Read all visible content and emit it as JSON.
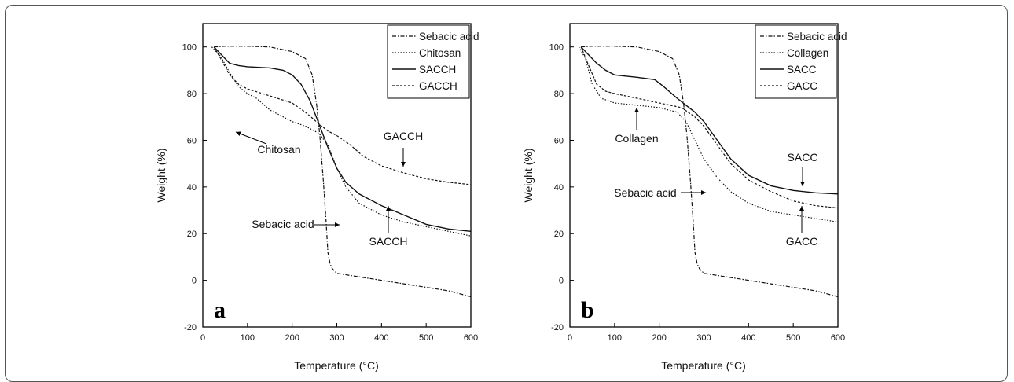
{
  "chart_data": [
    {
      "type": "line",
      "panel_label": "a",
      "xlabel": "Temperature (°C)",
      "ylabel": "Weight (%)",
      "xlim": [
        0,
        600
      ],
      "ylim": [
        -20,
        110
      ],
      "xticks": [
        0,
        100,
        200,
        300,
        400,
        500,
        600
      ],
      "yticks": [
        -20,
        0,
        20,
        40,
        60,
        80,
        100
      ],
      "legend_position": "top-right",
      "series": [
        {
          "name": "Sebacic acid",
          "style": "dashdot",
          "x": [
            25,
            50,
            100,
            150,
            200,
            230,
            245,
            255,
            262,
            270,
            276,
            280,
            285,
            290,
            300,
            350,
            400,
            450,
            500,
            550,
            600
          ],
          "y": [
            100,
            100.3,
            100.3,
            100,
            98,
            95,
            88,
            75,
            62,
            42,
            25,
            12,
            7,
            5,
            3,
            1.5,
            0,
            -1.5,
            -3,
            -4.5,
            -7
          ]
        },
        {
          "name": "Chitosan",
          "style": "dotted",
          "x": [
            20,
            40,
            60,
            80,
            100,
            120,
            150,
            200,
            230,
            260,
            280,
            300,
            320,
            350,
            400,
            450,
            500,
            550,
            600
          ],
          "y": [
            100,
            96,
            89,
            83,
            80,
            78,
            73,
            68,
            66,
            63,
            58,
            48,
            40,
            33,
            28,
            25,
            23,
            21,
            19
          ]
        },
        {
          "name": "SACCH",
          "style": "solid",
          "x": [
            25,
            40,
            60,
            80,
            100,
            150,
            180,
            200,
            220,
            240,
            260,
            280,
            300,
            320,
            350,
            400,
            450,
            500,
            550,
            600
          ],
          "y": [
            100,
            97,
            93,
            92,
            91.5,
            91,
            90,
            88,
            84,
            77,
            67,
            57,
            48,
            42,
            37,
            32,
            28,
            24,
            22,
            21
          ]
        },
        {
          "name": "GACCH",
          "style": "short-dash",
          "x": [
            25,
            40,
            60,
            80,
            100,
            150,
            200,
            230,
            260,
            280,
            300,
            330,
            360,
            400,
            450,
            500,
            550,
            600
          ],
          "y": [
            100,
            95,
            88,
            84,
            82,
            79,
            76,
            72,
            67,
            64,
            62,
            58,
            53,
            49,
            46,
            43.5,
            42,
            41
          ]
        }
      ],
      "annotations": [
        {
          "text": "Chitosan",
          "x": 200,
          "y": 67
        },
        {
          "text": "GACCH",
          "x": 415,
          "y": 48
        },
        {
          "text": "Sebacic acid",
          "x": 283,
          "y": 24
        },
        {
          "text": "SACCH",
          "x": 390,
          "y": 32
        }
      ]
    },
    {
      "type": "line",
      "panel_label": "b",
      "xlabel": "Temperature (°C)",
      "ylabel": "Weight (%)",
      "xlim": [
        0,
        600
      ],
      "ylim": [
        -20,
        110
      ],
      "xticks": [
        0,
        100,
        200,
        300,
        400,
        500,
        600
      ],
      "yticks": [
        -20,
        0,
        20,
        40,
        60,
        80,
        100
      ],
      "legend_position": "top-right",
      "series": [
        {
          "name": "Sebacic acid",
          "style": "dashdot",
          "x": [
            25,
            50,
            100,
            150,
            200,
            230,
            245,
            255,
            262,
            270,
            276,
            280,
            285,
            290,
            300,
            350,
            400,
            450,
            500,
            550,
            600
          ],
          "y": [
            100,
            100.3,
            100.3,
            100,
            98,
            95,
            88,
            75,
            62,
            42,
            25,
            12,
            7,
            5,
            3,
            1.5,
            0,
            -1.5,
            -3,
            -4.5,
            -7
          ]
        },
        {
          "name": "Collagen",
          "style": "dotted",
          "x": [
            20,
            35,
            50,
            70,
            100,
            150,
            200,
            240,
            260,
            280,
            300,
            330,
            360,
            400,
            450,
            500,
            550,
            600
          ],
          "y": [
            100,
            95,
            84,
            78,
            76,
            75,
            74,
            72,
            68,
            60,
            52,
            44,
            38,
            33,
            29.5,
            28,
            26.5,
            25
          ]
        },
        {
          "name": "SACC",
          "style": "solid",
          "x": [
            25,
            40,
            60,
            80,
            100,
            150,
            190,
            210,
            240,
            260,
            280,
            300,
            330,
            360,
            400,
            450,
            500,
            550,
            600
          ],
          "y": [
            100,
            97,
            93,
            90,
            88,
            87,
            86,
            83,
            78,
            75,
            72,
            68,
            60,
            52,
            45,
            40.5,
            38.5,
            37.5,
            37
          ]
        },
        {
          "name": "GACC",
          "style": "short-dash",
          "x": [
            25,
            40,
            60,
            80,
            100,
            150,
            200,
            250,
            280,
            300,
            330,
            360,
            400,
            450,
            500,
            550,
            600
          ],
          "y": [
            100,
            93,
            84,
            81,
            80,
            78,
            76,
            74,
            70,
            66,
            58,
            50,
            43,
            38,
            34,
            32,
            31
          ]
        }
      ],
      "annotations": [
        {
          "text": "Collagen",
          "x": 145,
          "y": 75
        },
        {
          "text": "Sebacic acid",
          "x": 272,
          "y": 38
        },
        {
          "text": "SACC",
          "x": 480,
          "y": 40
        },
        {
          "text": "GACC",
          "x": 475,
          "y": 32
        }
      ]
    }
  ]
}
